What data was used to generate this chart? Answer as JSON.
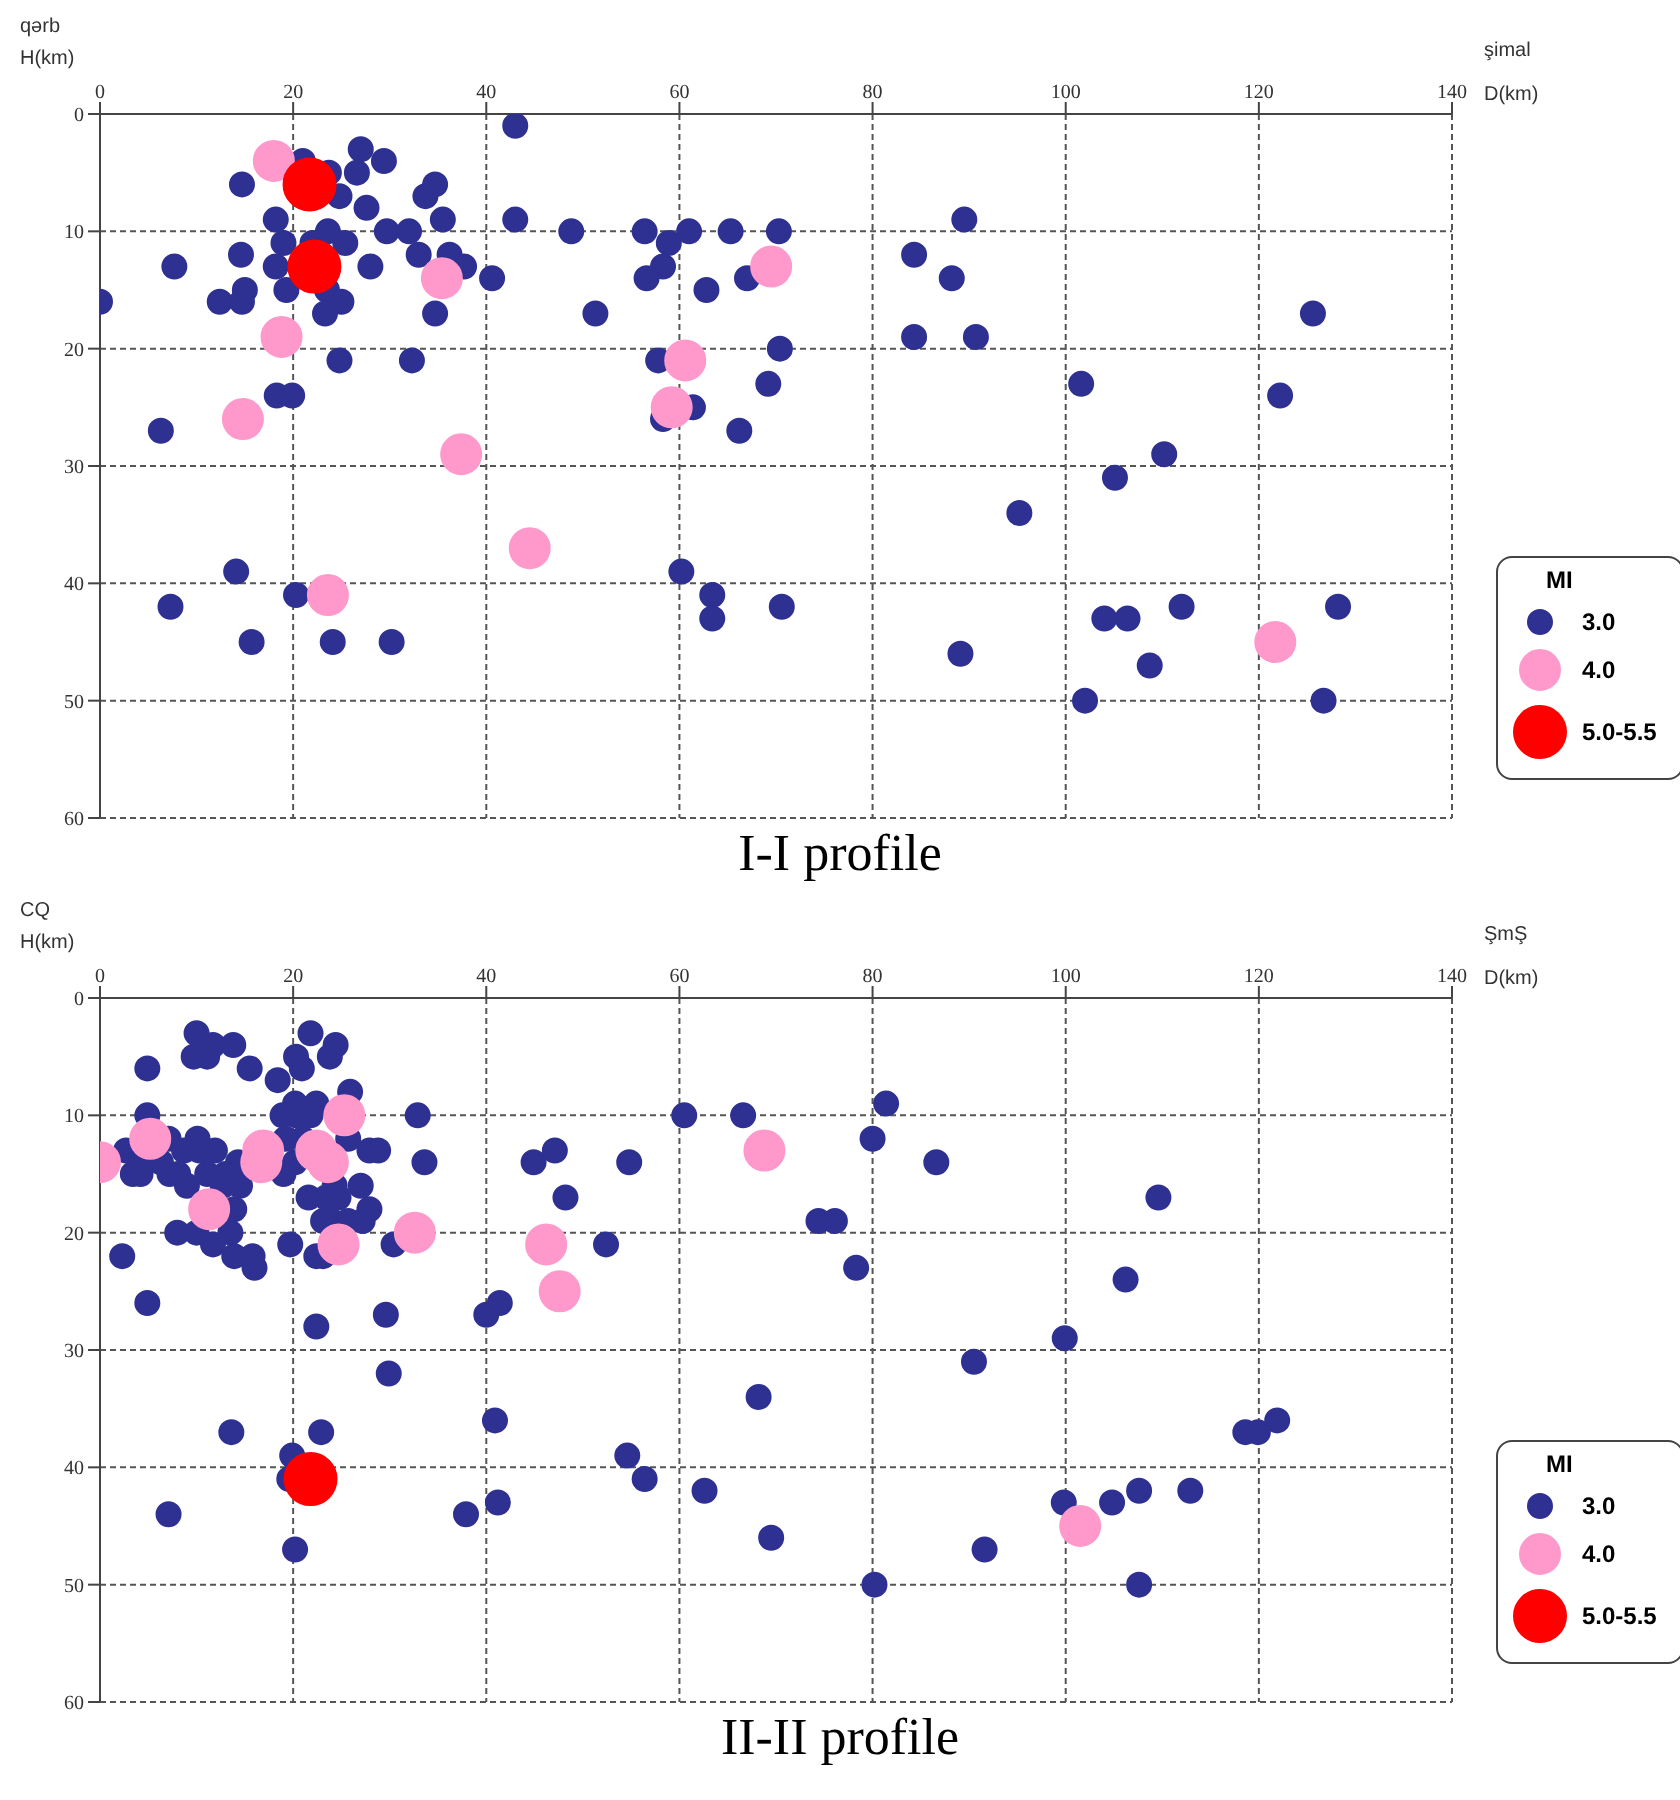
{
  "chart_data": [
    {
      "type": "scatter",
      "title": "I-I profile",
      "xlabel": "D(km)",
      "ylabel": "H(km)",
      "legend_title": "MI",
      "annotations": [
        "qərb",
        "şimal"
      ],
      "xlim": [
        0,
        140
      ],
      "xticks": [
        0,
        20,
        40,
        60,
        80,
        100,
        120,
        140
      ],
      "ylim": [
        60,
        0
      ],
      "yticks": [
        0,
        10,
        20,
        30,
        40,
        50,
        60
      ],
      "grid": true,
      "legend": "bottom right",
      "marker": "circle",
      "series": [
        {
          "name": "3.0",
          "color": "#2e3192",
          "x": [
            0,
            43,
            27,
            29.4,
            21,
            23.7,
            26.6,
            14.7,
            34.7,
            33.7,
            24.8,
            27.6,
            18.2,
            35.5,
            43,
            23.6,
            29.7,
            32,
            48.8,
            56.4,
            61,
            65.3,
            70.3,
            19,
            25.4,
            58.9,
            22,
            14.6,
            33,
            36.2,
            7.7,
            18.2,
            28,
            37.7,
            58.3,
            40.6,
            56.6,
            67,
            15,
            19.3,
            23.5,
            62.8,
            12.4,
            14.7,
            25,
            23.3,
            34.7,
            51.3,
            24.8,
            32.3,
            57.8,
            70.4,
            69.2,
            18.3,
            19.9,
            61.4,
            58.3,
            6.3,
            66.2,
            14.1,
            60.2,
            7.3,
            20.3,
            63.4,
            63.4,
            70.6,
            15.7,
            24.1,
            30.2,
            89.5,
            84.3,
            88.2,
            125.6,
            84.3,
            90.7,
            101.6,
            122.2,
            110.2,
            105.1,
            95.2,
            104,
            106.4,
            112,
            128.2,
            89.1,
            108.7,
            102,
            126.7
          ],
          "values": [
            16,
            1,
            3,
            4,
            4,
            5,
            5,
            6,
            6,
            7,
            7,
            8,
            9,
            9,
            9,
            10,
            10,
            10,
            10,
            10,
            10,
            10,
            10,
            11,
            11,
            11,
            11,
            12,
            12,
            12,
            13,
            13,
            13,
            13,
            13,
            14,
            14,
            14,
            15,
            15,
            15,
            15,
            16,
            16,
            16,
            17,
            17,
            17,
            21,
            21,
            21,
            20,
            23,
            24,
            24,
            25,
            26,
            27,
            27,
            39,
            39,
            42,
            41,
            41,
            43,
            42,
            45,
            45,
            45,
            9,
            12,
            14,
            17,
            19,
            19,
            23,
            24,
            29,
            31,
            34,
            43,
            43,
            42,
            42,
            46,
            47,
            50,
            50
          ]
        },
        {
          "name": "4.0",
          "color": "#ff99cc",
          "x": [
            18,
            35.4,
            18.8,
            14.8,
            37.4,
            44.5,
            23.6,
            60.6,
            59.2,
            69.5,
            121.7
          ],
          "values": [
            4,
            14,
            19,
            26,
            29,
            37,
            41,
            21,
            25,
            13,
            45
          ]
        },
        {
          "name": "5.0-5.5",
          "color": "#ff0000",
          "x": [
            21.7,
            22.2
          ],
          "values": [
            6,
            13
          ]
        }
      ]
    },
    {
      "type": "scatter",
      "title": "II-II profile",
      "xlabel": "D(km)",
      "ylabel": "H(km)",
      "legend_title": "MI",
      "annotations": [
        "CQ",
        "ŞmŞ"
      ],
      "xlim": [
        0,
        140
      ],
      "xticks": [
        0,
        20,
        40,
        60,
        80,
        100,
        120,
        140
      ],
      "ylim": [
        60,
        0
      ],
      "yticks": [
        0,
        10,
        20,
        30,
        40,
        50,
        60
      ],
      "grid": true,
      "legend": "bottom right",
      "marker": "circle",
      "series": [
        {
          "name": "3.0",
          "color": "#2e3192",
          "x": [
            10,
            21.8,
            11.7,
            13.8,
            24.4,
            9.7,
            11.1,
            20.3,
            23.8,
            4.9,
            15.5,
            20.9,
            18.4,
            25.9,
            20.2,
            22.4,
            4.9,
            18.9,
            20.3,
            21.8,
            32.9,
            21,
            19.2,
            25.7,
            10.1,
            7.1,
            2.7,
            8.7,
            10.3,
            11.9,
            27.9,
            28.8,
            20.2,
            14.3,
            6.3,
            4.2,
            33.6,
            3.4,
            4.2,
            7.2,
            8.1,
            11.1,
            13,
            19,
            9,
            12.7,
            14.5,
            24.3,
            27,
            21.6,
            23.4,
            24.7,
            13.9,
            27.9,
            23.1,
            24,
            25.7,
            27.2,
            8,
            10,
            13.5,
            11.7,
            19.7,
            30.4,
            2.3,
            13.9,
            15.8,
            22.4,
            23.1,
            16,
            4.9,
            22.4,
            29.6,
            29.9,
            40,
            41.4,
            40.9,
            13.6,
            22.9,
            19.9,
            19.6,
            7.1,
            37.9,
            41.2,
            20.2,
            44.9,
            47.1,
            48.2,
            54.8,
            52.4,
            54.6,
            56.4,
            62.6,
            60.5,
            66.6,
            81.4,
            80,
            86.6,
            109.6,
            74.4,
            76.1,
            78.3,
            106.2,
            99.9,
            90.5,
            68.2,
            118.6,
            119.9,
            121.9,
            99.8,
            104.8,
            107.6,
            112.9,
            69.5,
            91.6,
            80.2,
            107.6
          ],
          "values": [
            3,
            3,
            4,
            4,
            4,
            5,
            5,
            5,
            5,
            6,
            6,
            6,
            7,
            8,
            9,
            9,
            10,
            10,
            10,
            10,
            10,
            12,
            12,
            12,
            12,
            12,
            13,
            13,
            13,
            13,
            13,
            13,
            14,
            14,
            14,
            14,
            14,
            15,
            15,
            15,
            15,
            15,
            15,
            15,
            16,
            16,
            16,
            16,
            16,
            17,
            17,
            17,
            18,
            18,
            19,
            19,
            19,
            19,
            20,
            20,
            20,
            21,
            21,
            21,
            22,
            22,
            22,
            22,
            22,
            23,
            26,
            28,
            27,
            32,
            27,
            26,
            36,
            37,
            37,
            39,
            41,
            44,
            44,
            43,
            47,
            14,
            13,
            17,
            14,
            21,
            39,
            41,
            42,
            10,
            10,
            9,
            12,
            14,
            17,
            19,
            19,
            23,
            24,
            29,
            31,
            34,
            37,
            37,
            36,
            43,
            43,
            42,
            42,
            46,
            47,
            50,
            50
          ]
        },
        {
          "name": "4.0",
          "color": "#ff99cc",
          "x": [
            0,
            5.2,
            16.9,
            16.7,
            11.3,
            22.4,
            23.6,
            25.3,
            24.7,
            32.6,
            46.2,
            47.6,
            68.8,
            101.5
          ],
          "values": [
            14,
            12,
            13,
            14,
            18,
            13,
            14,
            10,
            21,
            20,
            21,
            25,
            13,
            45
          ]
        },
        {
          "name": "5.0-5.5",
          "color": "#ff0000",
          "x": [
            21.8
          ],
          "values": [
            41
          ]
        }
      ]
    }
  ]
}
